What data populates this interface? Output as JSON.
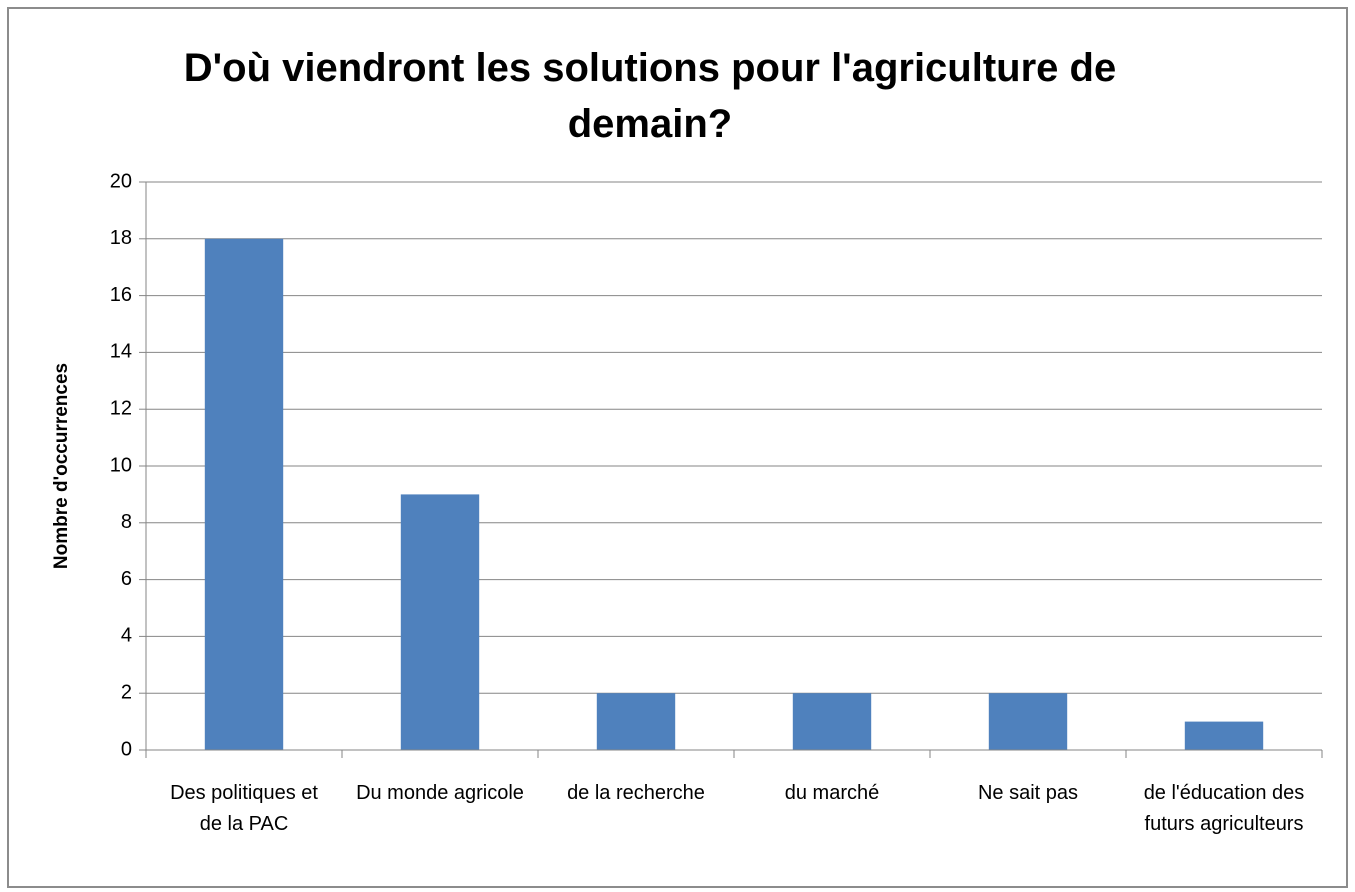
{
  "chart_data": {
    "type": "bar",
    "title": "D'où viendront les solutions pour l'agriculture de demain?",
    "y_label": "Nombre d'occurrences",
    "categories": [
      "Des politiques et de la PAC",
      "Du monde agricole",
      "de la recherche",
      "du marché",
      "Ne sait pas",
      "de l'éducation des futurs agriculteurs"
    ],
    "values": [
      18,
      9,
      2,
      2,
      2,
      1
    ],
    "color": "#4f81bd",
    "ylim": [
      0,
      20
    ],
    "yticks": [
      0,
      2,
      4,
      6,
      8,
      10,
      12,
      14,
      16,
      18,
      20
    ],
    "grid": true
  }
}
